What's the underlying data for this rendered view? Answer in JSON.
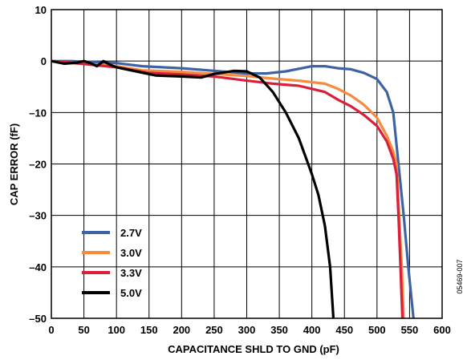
{
  "chart_data": {
    "type": "line",
    "xlabel": "CAPACITANCE SHLD TO GND (pF)",
    "ylabel": "CAP ERROR (fF)",
    "xlim": [
      0,
      600
    ],
    "ylim": [
      -50,
      10
    ],
    "x_ticks": [
      0,
      50,
      100,
      150,
      200,
      250,
      300,
      350,
      400,
      450,
      500,
      550,
      600
    ],
    "y_ticks": [
      10,
      0,
      -10,
      -20,
      -30,
      -40,
      -50
    ],
    "y_tick_labels": [
      "10",
      "0",
      "–10",
      "–20",
      "–30",
      "–40",
      "–50"
    ],
    "grid": true,
    "legend_position": "bottom-left",
    "figure_id": "05469-007",
    "series": [
      {
        "name": "2.7V",
        "color": "#3D63A5",
        "points": [
          [
            0,
            0
          ],
          [
            30,
            0
          ],
          [
            60,
            -0.2
          ],
          [
            100,
            -0.4
          ],
          [
            140,
            -1
          ],
          [
            200,
            -1.4
          ],
          [
            240,
            -1.8
          ],
          [
            300,
            -2.4
          ],
          [
            330,
            -2.4
          ],
          [
            360,
            -2
          ],
          [
            380,
            -1.5
          ],
          [
            400,
            -1
          ],
          [
            420,
            -1
          ],
          [
            440,
            -1.4
          ],
          [
            460,
            -1.6
          ],
          [
            480,
            -2.3
          ],
          [
            500,
            -3.5
          ],
          [
            515,
            -6
          ],
          [
            525,
            -10
          ],
          [
            533,
            -20
          ],
          [
            541,
            -30
          ],
          [
            548,
            -40
          ],
          [
            556,
            -50
          ]
        ]
      },
      {
        "name": "3.0V",
        "color": "#F68B3E",
        "points": [
          [
            0,
            0
          ],
          [
            30,
            -0.4
          ],
          [
            60,
            -0.6
          ],
          [
            100,
            -1
          ],
          [
            140,
            -1.8
          ],
          [
            200,
            -2.1
          ],
          [
            250,
            -2.5
          ],
          [
            300,
            -2.9
          ],
          [
            340,
            -3.4
          ],
          [
            380,
            -3.8
          ],
          [
            420,
            -4.4
          ],
          [
            440,
            -5.4
          ],
          [
            460,
            -6.7
          ],
          [
            480,
            -8.5
          ],
          [
            500,
            -11
          ],
          [
            515,
            -14.5
          ],
          [
            525,
            -17.6
          ],
          [
            530,
            -20
          ],
          [
            534,
            -30
          ],
          [
            538,
            -40
          ],
          [
            541,
            -50
          ]
        ]
      },
      {
        "name": "3.3V",
        "color": "#DA1F3D",
        "points": [
          [
            0,
            0
          ],
          [
            30,
            -0.3
          ],
          [
            60,
            -0.7
          ],
          [
            100,
            -1.2
          ],
          [
            150,
            -2.3
          ],
          [
            200,
            -2.6
          ],
          [
            250,
            -3
          ],
          [
            300,
            -3.8
          ],
          [
            340,
            -4.4
          ],
          [
            380,
            -4.8
          ],
          [
            420,
            -6
          ],
          [
            440,
            -7.5
          ],
          [
            460,
            -8.8
          ],
          [
            480,
            -10.5
          ],
          [
            500,
            -12.6
          ],
          [
            515,
            -15.6
          ],
          [
            525,
            -19
          ],
          [
            530,
            -22
          ],
          [
            533,
            -30
          ],
          [
            536,
            -40
          ],
          [
            539,
            -50
          ]
        ]
      },
      {
        "name": "5.0V",
        "color": "#000000",
        "points": [
          [
            0,
            0
          ],
          [
            20,
            -0.5
          ],
          [
            40,
            -0.3
          ],
          [
            50,
            0
          ],
          [
            60,
            -0.4
          ],
          [
            70,
            -1
          ],
          [
            80,
            0
          ],
          [
            90,
            -0.7
          ],
          [
            100,
            -1.2
          ],
          [
            130,
            -2
          ],
          [
            160,
            -2.8
          ],
          [
            200,
            -3
          ],
          [
            230,
            -3.2
          ],
          [
            250,
            -2.5
          ],
          [
            280,
            -1.9
          ],
          [
            300,
            -2
          ],
          [
            320,
            -3.2
          ],
          [
            340,
            -6
          ],
          [
            360,
            -10
          ],
          [
            380,
            -15
          ],
          [
            400,
            -22
          ],
          [
            410,
            -26
          ],
          [
            420,
            -32
          ],
          [
            428,
            -40
          ],
          [
            433,
            -50
          ]
        ]
      }
    ]
  }
}
